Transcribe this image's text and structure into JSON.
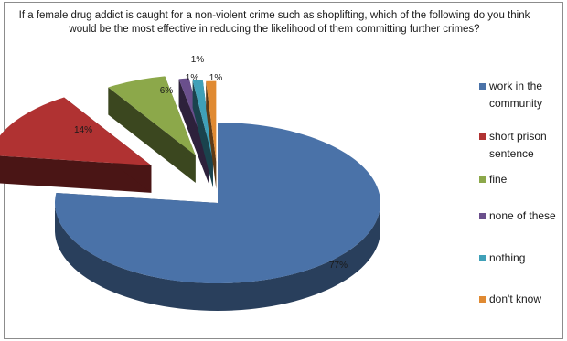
{
  "chart_data": {
    "type": "pie",
    "title": "If a female drug addict is caught for a non-violent crime such as shoplifting, which of the following do you think would be the most effective in reducing the likelihood of them committing further crimes?",
    "categories": [
      "work in the community",
      "short prison sentence",
      "fine",
      "none of these",
      "nothing",
      "don't know"
    ],
    "values": [
      77,
      14,
      6,
      1,
      1,
      1
    ],
    "data_labels": [
      "77%",
      "14%",
      "6%",
      "1%",
      "1%",
      "1%"
    ],
    "colors": [
      "#4a72a8",
      "#b03232",
      "#8ca84a",
      "#6a4f8c",
      "#3fa0b8",
      "#e08a32"
    ],
    "legend_position": "right",
    "exploded": true,
    "three_d": true
  }
}
